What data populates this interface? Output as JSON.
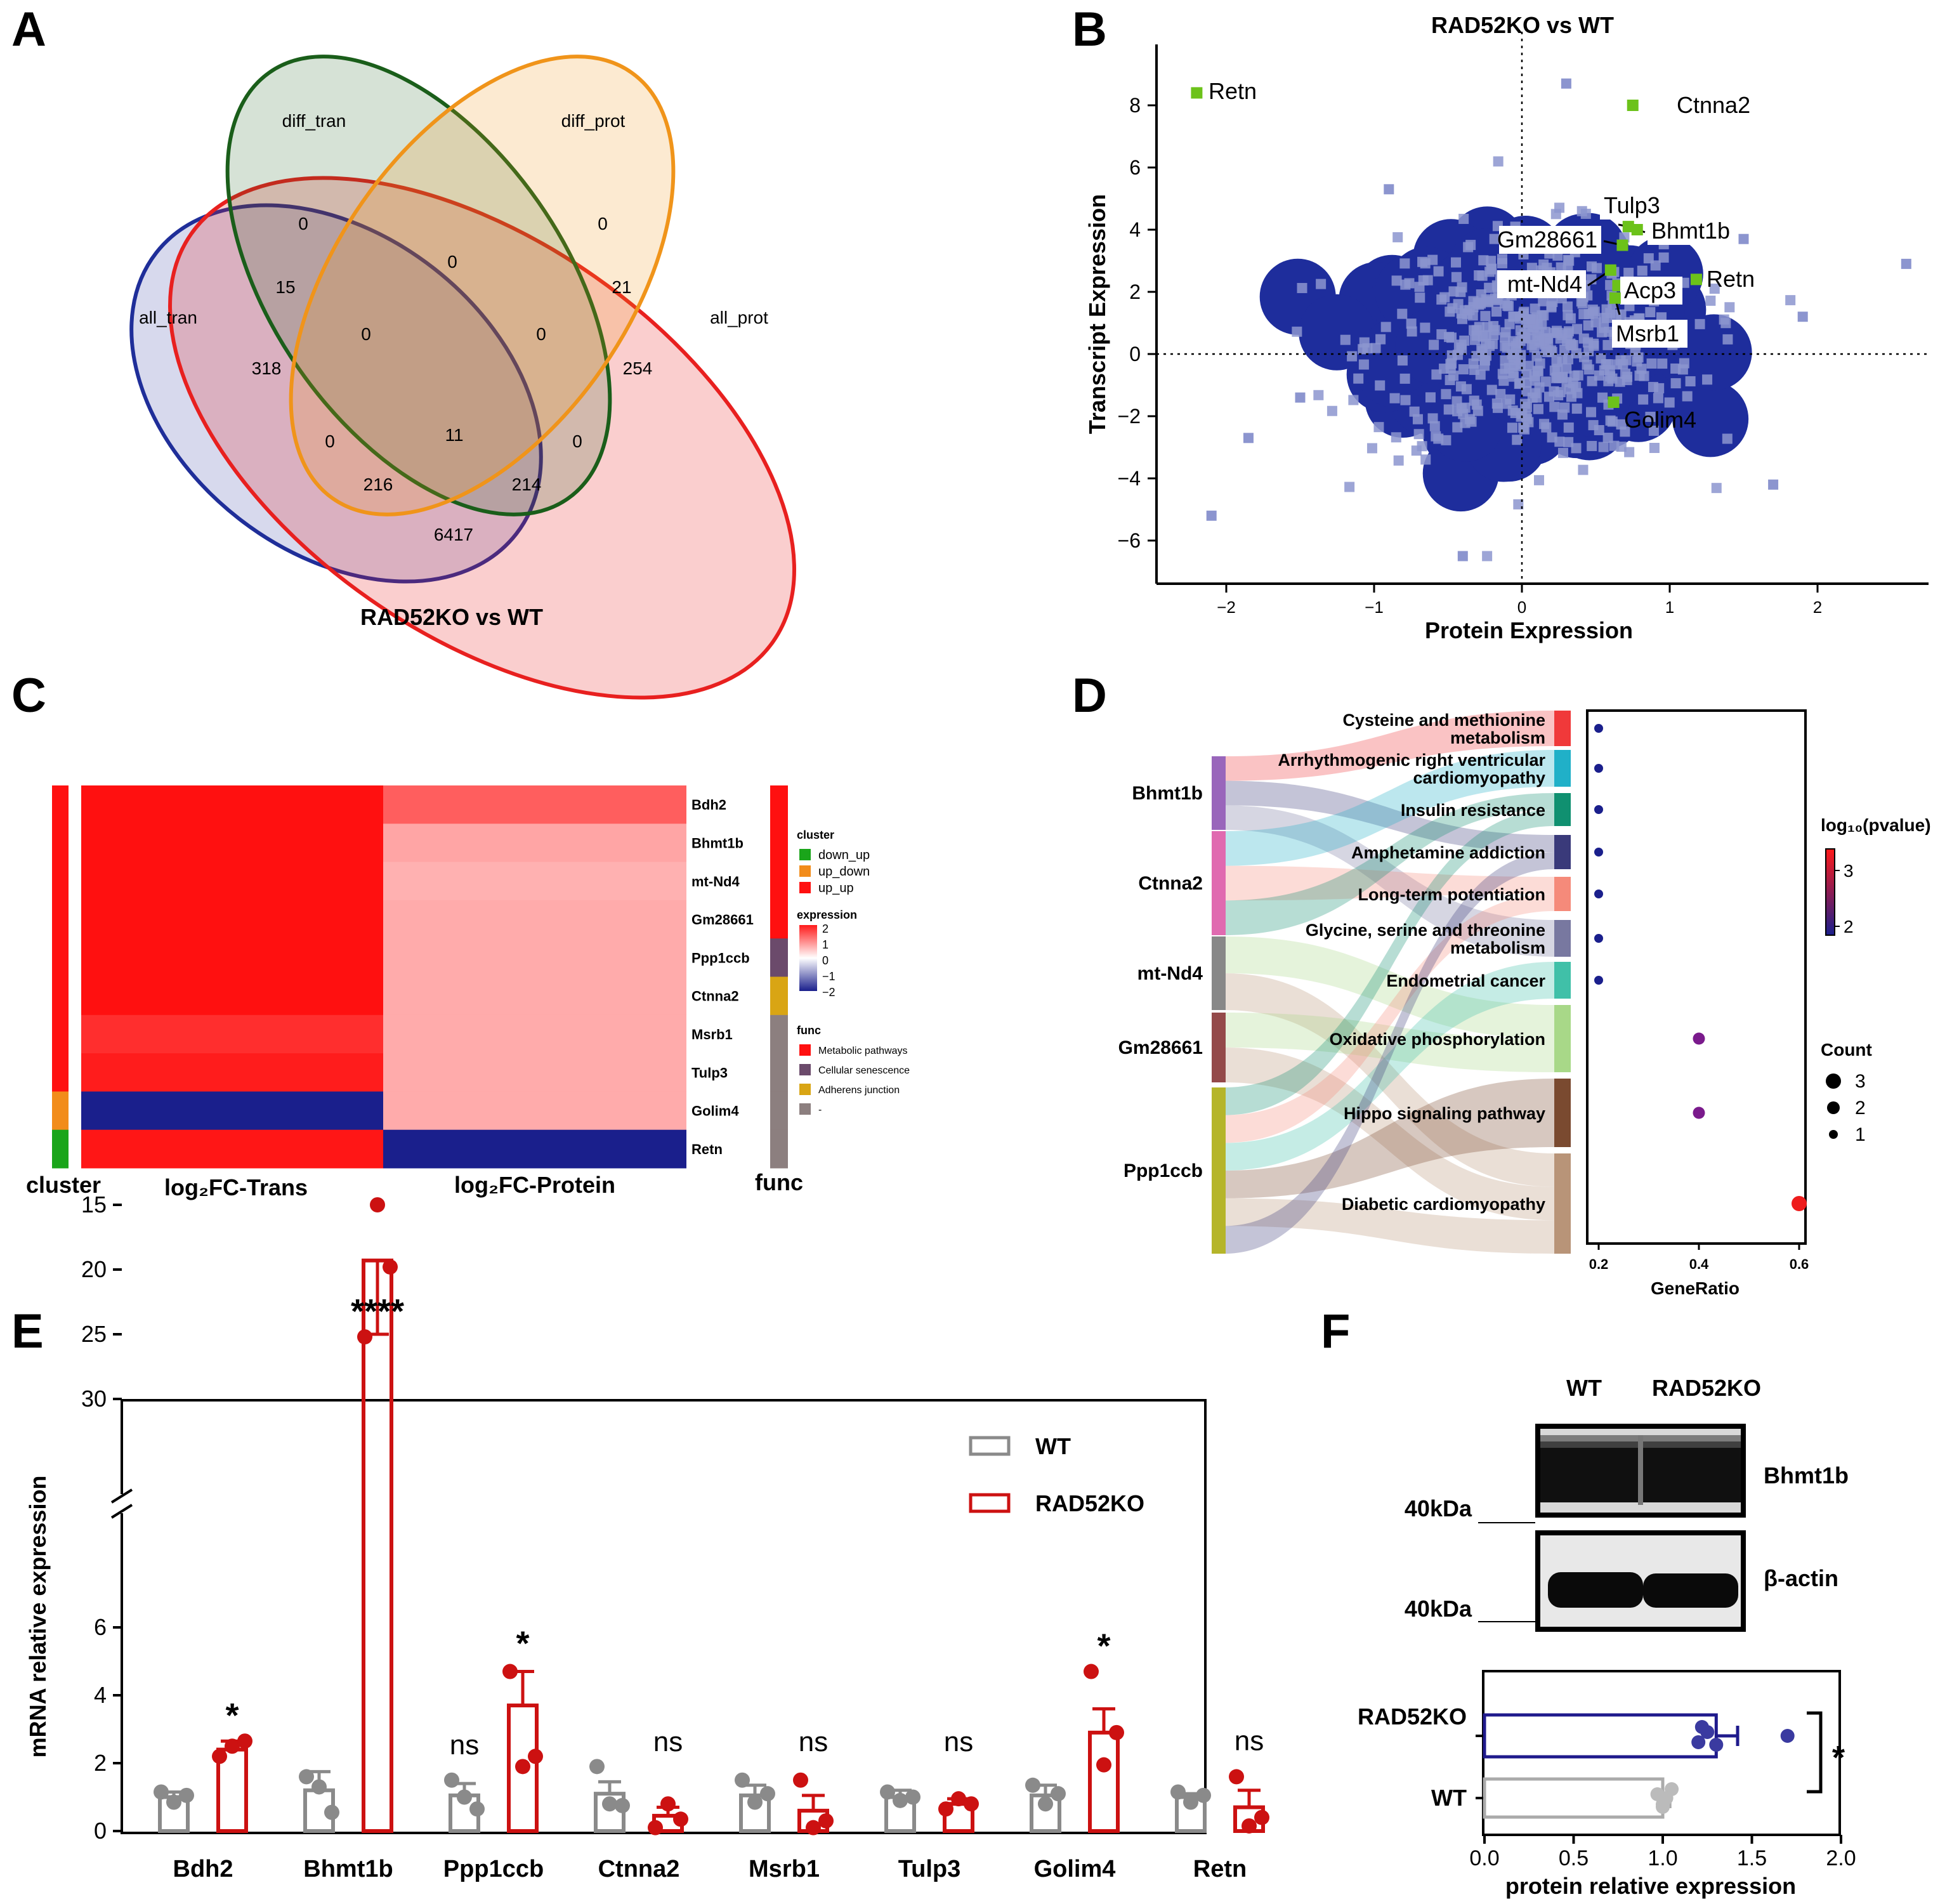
{
  "panels": {
    "A": {
      "letter": "A",
      "title": "RAD52KO vs WT",
      "sets": [
        {
          "name": "diff_tran",
          "color": "#1a5e1a"
        },
        {
          "name": "diff_prot",
          "color": "#f0941a"
        },
        {
          "name": "all_tran",
          "color": "#1f2e99"
        },
        {
          "name": "all_prot",
          "color": "#e8201f"
        }
      ],
      "counts": {
        "diff_tran_only": "0",
        "diff_prot_only": "0",
        "dt_dp": "0",
        "at_dt": "15",
        "dp_ap": "21",
        "at_only": "318",
        "ap_only": "254",
        "at_dt_dp": "0",
        "dt_dp_ap": "0",
        "at_dp": "0",
        "all_four": "11",
        "dt_ap": "0",
        "at_dp_ap": "216",
        "at_dt_ap": "214",
        "at_ap": "6417"
      }
    },
    "B": {
      "letter": "B",
      "title": "RAD52KO vs WT",
      "xlabel": "Protein Expression",
      "ylabel": "Transcript Expression",
      "xticks": [
        "−2",
        "−1",
        "0",
        "1",
        "2"
      ],
      "yticks": [
        "−6",
        "−4",
        "−2",
        "0",
        "2",
        "4",
        "6",
        "8"
      ],
      "labeled_points": [
        {
          "name": "Retn",
          "x": -2.2,
          "y": 8.4
        },
        {
          "name": "Ctnna2",
          "x": 0.75,
          "y": 8.0
        },
        {
          "name": "Tulp3",
          "x": 0.72,
          "y": 4.1
        },
        {
          "name": "Bhmt1b",
          "x": 0.78,
          "y": 4.0
        },
        {
          "name": "Gm28661",
          "x": 0.68,
          "y": 3.5
        },
        {
          "name": "mt-Nd4",
          "x": 0.6,
          "y": 2.7
        },
        {
          "name": "Acp3",
          "x": 0.65,
          "y": 2.2
        },
        {
          "name": "Retn",
          "x": 1.18,
          "y": 2.4
        },
        {
          "name": "Msrb1",
          "x": 0.63,
          "y": 1.8
        },
        {
          "name": "Golim4",
          "x": 0.62,
          "y": -1.55
        }
      ]
    },
    "C": {
      "letter": "C",
      "genes": [
        "Bdh2",
        "Bhmt1b",
        "mt-Nd4",
        "Gm28661",
        "Ppp1ccb",
        "Ctnna2",
        "Msrb1",
        "Tulp3",
        "Golim4",
        "Retn"
      ],
      "log2fc_trans": [
        2.0,
        2.0,
        2.0,
        2.0,
        2.0,
        2.0,
        1.75,
        1.9,
        -2.0,
        1.95
      ],
      "log2fc_protein": [
        1.35,
        0.75,
        0.65,
        0.7,
        0.7,
        0.7,
        0.7,
        0.7,
        0.7,
        -2.0
      ],
      "cluster_values": [
        "up_up",
        "up_up",
        "up_up",
        "up_up",
        "up_up",
        "up_up",
        "up_up",
        "up_up",
        "up_down",
        "down_up"
      ],
      "func_values": [
        "Metabolic pathways",
        "Metabolic pathways",
        "Metabolic pathways",
        "Metabolic pathways",
        "Cellular senescence",
        "Adherens junction",
        "-",
        "-",
        "-",
        "-"
      ],
      "col_labels": {
        "cluster": "cluster",
        "trans": "log₂FC-Trans",
        "protein": "log₂FC-Protein",
        "func": "func"
      },
      "legend_cluster": {
        "title": "cluster",
        "items": [
          {
            "label": "down_up",
            "color": "#1aa51a"
          },
          {
            "label": "up_down",
            "color": "#f28c1a"
          },
          {
            "label": "up_up",
            "color": "#ff1010"
          }
        ]
      },
      "legend_expression": {
        "title": "expression",
        "ticks": [
          "2",
          "1",
          "0",
          "−1",
          "−2"
        ]
      },
      "legend_func": {
        "title": "func",
        "items": [
          {
            "label": "Metabolic pathways",
            "color": "#ff1010"
          },
          {
            "label": "Cellular senescence",
            "color": "#6b4a6b"
          },
          {
            "label": "Adherens junction",
            "color": "#d9a514"
          },
          {
            "label": "-",
            "color": "#8c7f7f"
          }
        ]
      }
    },
    "D": {
      "letter": "D",
      "genes": [
        {
          "name": "Bhmt1b",
          "color": "#9966bb"
        },
        {
          "name": "Ctnna2",
          "color": "#e06ab0"
        },
        {
          "name": "mt-Nd4",
          "color": "#888888"
        },
        {
          "name": "Gm28661",
          "color": "#944a4a"
        },
        {
          "name": "Ppp1ccb",
          "color": "#b5b52a"
        }
      ],
      "pathways": [
        {
          "name": "Cysteine and methionine metabolism",
          "lines": [
            "Cysteine and methionine",
            "metabolism"
          ],
          "color": "#f0393a",
          "gene_ratio": 0.2,
          "count": 1,
          "log10p": 1.6
        },
        {
          "name": "Arrhythmogenic right ventricular cardiomyopathy",
          "lines": [
            "Arrhythmogenic right ventricular",
            "cardiomyopathy"
          ],
          "color": "#20b0c8",
          "gene_ratio": 0.2,
          "count": 1,
          "log10p": 1.6
        },
        {
          "name": "Insulin resistance",
          "lines": [
            "Insulin resistance"
          ],
          "color": "#109070",
          "gene_ratio": 0.2,
          "count": 1,
          "log10p": 1.6
        },
        {
          "name": "Amphetamine addiction",
          "lines": [
            "Amphetamine addiction"
          ],
          "color": "#3a3a7a",
          "gene_ratio": 0.2,
          "count": 1,
          "log10p": 1.6
        },
        {
          "name": "Long-term potentiation",
          "lines": [
            "Long-term potentiation"
          ],
          "color": "#f58a7a",
          "gene_ratio": 0.2,
          "count": 1,
          "log10p": 1.6
        },
        {
          "name": "Glycine, serine and threonine metabolism",
          "lines": [
            "Glycine, serine and threonine",
            "metabolism"
          ],
          "color": "#7878a0",
          "gene_ratio": 0.2,
          "count": 1,
          "log10p": 1.6
        },
        {
          "name": "Endometrial cancer",
          "lines": [
            "Endometrial cancer"
          ],
          "color": "#40c0a8",
          "gene_ratio": 0.2,
          "count": 1,
          "log10p": 1.6
        },
        {
          "name": "Oxidative phosphorylation",
          "lines": [
            "Oxidative phosphorylation"
          ],
          "color": "#a8d888",
          "gene_ratio": 0.4,
          "count": 2,
          "log10p": 2.4
        },
        {
          "name": "Hippo signaling pathway",
          "lines": [
            "Hippo signaling pathway"
          ],
          "color": "#7a4a30",
          "gene_ratio": 0.4,
          "count": 2,
          "log10p": 2.4
        },
        {
          "name": "Diabetic cardiomyopathy",
          "lines": [
            "Diabetic cardiomyopathy"
          ],
          "color": "#b89478",
          "gene_ratio": 0.6,
          "count": 3,
          "log10p": 3.3
        }
      ],
      "xlabel": "GeneRatio",
      "xticks": [
        "0.2",
        "0.4",
        "0.6"
      ],
      "color_legend_title": "log₁₀(pvalue)",
      "color_legend_ticks": [
        "3",
        "2"
      ],
      "size_legend_title": "Count",
      "size_legend_items": [
        "3",
        "2",
        "1"
      ]
    },
    "E": {
      "letter": "E",
      "ylabel": "mRNA relative expression",
      "yticks_low": [
        "0",
        "2",
        "4",
        "6"
      ],
      "yticks_high": [
        "15",
        "20",
        "25",
        "30"
      ],
      "legend": [
        {
          "label": "WT",
          "color": "#8a8a8a"
        },
        {
          "label": "RAD52KO",
          "color": "#cc1111"
        }
      ],
      "chart_data": {
        "type": "bar",
        "categories": [
          "Bdh2",
          "Bhmt1b",
          "Ppp1ccb",
          "Ctnna2",
          "Msrb1",
          "Tulp3",
          "Golim4",
          "Retn"
        ],
        "series": [
          {
            "name": "WT",
            "values": [
              1.0,
              1.2,
              1.05,
              1.1,
              1.05,
              1.0,
              1.05,
              1.0
            ],
            "errors": [
              0.15,
              0.55,
              0.35,
              0.35,
              0.3,
              0.2,
              0.3,
              0.1
            ],
            "points": [
              [
                1.15,
                0.85,
                1.05
              ],
              [
                1.6,
                1.3,
                0.55
              ],
              [
                1.5,
                1.0,
                0.65
              ],
              [
                1.9,
                0.8,
                0.75
              ],
              [
                1.5,
                0.85,
                1.1
              ],
              [
                1.15,
                0.9,
                1.0
              ],
              [
                1.35,
                0.8,
                1.1
              ],
              [
                1.15,
                0.85,
                1.05
              ]
            ]
          },
          {
            "name": "RAD52KO",
            "values": [
              2.4,
              19.3,
              3.7,
              0.45,
              0.6,
              0.8,
              2.9,
              0.7
            ],
            "errors": [
              0.25,
              5.7,
              1.0,
              0.25,
              0.45,
              0.15,
              0.7,
              0.5
            ],
            "points": [
              [
                2.2,
                2.5,
                2.65
              ],
              [
                25.2,
                15.0,
                19.8
              ],
              [
                4.7,
                1.9,
                2.2
              ],
              [
                0.1,
                0.8,
                0.35
              ],
              [
                1.5,
                0.1,
                0.3
              ],
              [
                0.65,
                0.95,
                0.8
              ],
              [
                4.7,
                1.95,
                2.9
              ],
              [
                1.6,
                0.15,
                0.4
              ]
            ]
          }
        ],
        "significance": [
          "*",
          "****",
          "ns",
          "ns",
          "ns",
          "ns",
          "*",
          "ns"
        ],
        "significance_above": [
          "RAD52KO",
          "RAD52KO",
          "WT",
          "RAD52KO",
          "RAD52KO",
          "RAD52KO",
          "RAD52KO",
          "RAD52KO"
        ],
        "ppp1ccb_star": "*",
        "ylabel": "mRNA relative expression",
        "ylim": [
          0,
          30
        ],
        "axis_break": [
          6,
          15
        ]
      }
    },
    "F": {
      "letter": "F",
      "blot_columns": [
        "WT",
        "RAD52KO"
      ],
      "blots": [
        {
          "protein": "Bhmt1b",
          "marker": "40kDa"
        },
        {
          "protein": "β-actin",
          "marker": "40kDa"
        }
      ],
      "xlabel": "protein relative expression",
      "xticks": [
        "0.0",
        "0.5",
        "1.0",
        "1.5",
        "2.0"
      ],
      "significance": "*",
      "chart_data": {
        "type": "bar",
        "orientation": "horizontal",
        "categories": [
          "RAD52KO",
          "WT"
        ],
        "values": [
          1.3,
          1.0
        ],
        "errors": [
          0.12,
          0.04
        ],
        "colors": [
          "#1f1a8c",
          "#aaaaaa"
        ],
        "points": [
          [
            1.22,
            1.3,
            1.25,
            1.7,
            1.2
          ],
          [
            1.05,
            1.0,
            0.97,
            1.02,
            1.0
          ]
        ],
        "xlabel": "protein relative expression",
        "xlim": [
          0,
          2.0
        ]
      }
    }
  }
}
